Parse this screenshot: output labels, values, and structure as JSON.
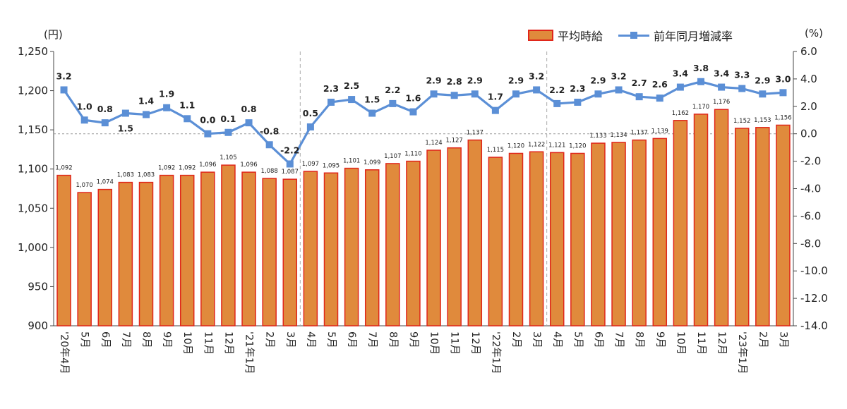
{
  "chart_data": {
    "type": "bar+line",
    "categories": [
      "'20年4月",
      "5月",
      "6月",
      "7月",
      "8月",
      "9月",
      "10月",
      "11月",
      "12月",
      "'21年1月",
      "2月",
      "3月",
      "4月",
      "5月",
      "6月",
      "7月",
      "8月",
      "9月",
      "10月",
      "11月",
      "12月",
      "'22年1月",
      "2月",
      "3月",
      "4月",
      "5月",
      "6月",
      "7月",
      "8月",
      "9月",
      "10月",
      "11月",
      "12月",
      "'23年1月",
      "2月",
      "3月"
    ],
    "series": [
      {
        "name": "平均時給",
        "type": "bar",
        "axis": "left",
        "color": "#e08a3c",
        "border_color": "#e0261a",
        "values": [
          1092,
          1070,
          1074,
          1083,
          1083,
          1092,
          1092,
          1096,
          1105,
          1096,
          1088,
          1087,
          1097,
          1095,
          1101,
          1099,
          1107,
          1110,
          1124,
          1127,
          1137,
          1115,
          1120,
          1122,
          1121,
          1120,
          1133,
          1134,
          1137,
          1139,
          1162,
          1170,
          1176,
          1152,
          1153,
          1156
        ],
        "labels": [
          "1,092",
          "1,070",
          "1,074",
          "1,083",
          "1,083",
          "1,092",
          "1,092",
          "1,096",
          "1,105",
          "1,096",
          "1,088",
          "1,087",
          "1,097",
          "1,095",
          "1,101",
          "1,099",
          "1,107",
          "1,110",
          "1,124",
          "1,127",
          "1,137",
          "1,115",
          "1,120",
          "1,122",
          "1,121",
          "1,120",
          "1,133",
          "1,134",
          "1,137",
          "1,139",
          "1,162",
          "1,170",
          "1,176",
          "1,152",
          "1,153",
          "1,156"
        ]
      },
      {
        "name": "前年同月増減率",
        "type": "line",
        "axis": "right",
        "color": "#5b8fd6",
        "values": [
          3.2,
          1.0,
          0.8,
          1.5,
          1.4,
          1.9,
          1.1,
          0.0,
          0.1,
          0.8,
          -0.8,
          -2.2,
          0.5,
          2.3,
          2.5,
          1.5,
          2.2,
          1.6,
          2.9,
          2.8,
          2.9,
          1.7,
          2.9,
          3.2,
          2.2,
          2.3,
          2.9,
          3.2,
          2.7,
          2.6,
          3.4,
          3.8,
          3.4,
          3.3,
          2.9,
          3.0
        ],
        "labels": [
          "3.2",
          "1.0",
          "0.8",
          "1.5",
          "1.4",
          "1.9",
          "1.1",
          "0.0",
          "0.1",
          "0.8",
          "-0.8",
          "-2.2",
          "0.5",
          "2.3",
          "2.5",
          "1.5",
          "2.2",
          "1.6",
          "2.9",
          "2.8",
          "2.9",
          "1.7",
          "2.9",
          "3.2",
          "2.2",
          "2.3",
          "2.9",
          "3.2",
          "2.7",
          "2.6",
          "3.4",
          "3.8",
          "3.4",
          "3.3",
          "2.9",
          "3.0"
        ]
      }
    ],
    "y_left": {
      "unit": "(円)",
      "ylim": [
        900,
        1250
      ],
      "ticks": [
        900,
        950,
        1000,
        1050,
        1100,
        1150,
        1200,
        1250
      ],
      "tick_labels": [
        "900",
        "950",
        "1,000",
        "1,050",
        "1,100",
        "1,150",
        "1,200",
        "1,250"
      ]
    },
    "y_right": {
      "unit": "(%)",
      "ylim": [
        -14.0,
        6.0
      ],
      "ticks": [
        -14,
        -12,
        -10,
        -8,
        -6,
        -4,
        -2,
        0,
        2,
        4,
        6
      ],
      "tick_labels": [
        "-14.0",
        "-12.0",
        "-10.0",
        "-8.0",
        "-6.0",
        "-4.0",
        "-2.0",
        "0.0",
        "2.0",
        "4.0",
        "6.0"
      ]
    },
    "year_dividers_after_index": [
      11,
      23
    ],
    "reference_line_right_value": 0.0,
    "legend_position": "top-right",
    "grid": false
  }
}
